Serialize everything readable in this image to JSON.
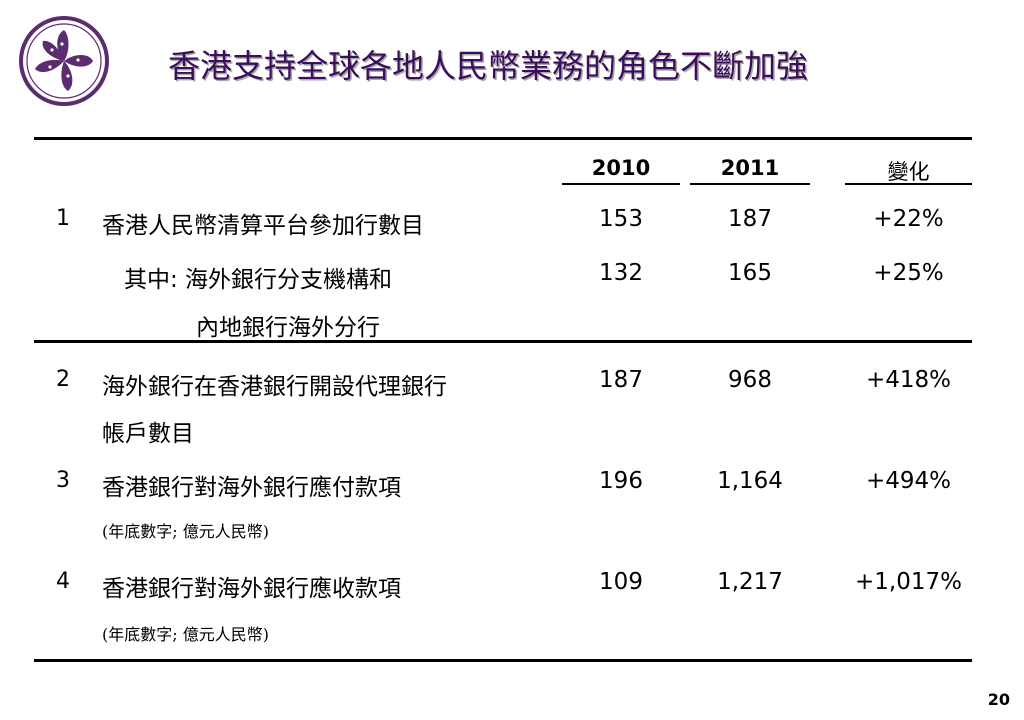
{
  "title": "香港支持全球各地人民幣業務的角色不斷加強",
  "logo": {
    "icon": "bauhinia-flower-icon",
    "ring_color": "#5b2c6f",
    "flower_color": "#5b2c6f"
  },
  "columns": [
    "2010",
    "2011",
    "變化"
  ],
  "rows": [
    {
      "index": "1",
      "label": "香港人民幣清算平台參加行數目",
      "v2010": "153",
      "v2011": "187",
      "change": "+22%"
    },
    {
      "label_line1": "其中: 海外銀行分支機構和",
      "label_line2": "內地銀行海外分行",
      "v2010": "132",
      "v2011": "165",
      "change": "+25%"
    },
    {
      "index": "2",
      "label_line1": "海外銀行在香港銀行開設代理銀行",
      "label_line2": "帳戶數目",
      "v2010": "187",
      "v2011": "968",
      "change": "+418%"
    },
    {
      "index": "3",
      "label": "香港銀行對海外銀行應付款項",
      "note": "(年底數字; 億元人民幣)",
      "v2010": "196",
      "v2011": "1,164",
      "change": "+494%"
    },
    {
      "index": "4",
      "label": "香港銀行對海外銀行應收款項",
      "note": "(年底數字; 億元人民幣)",
      "v2010": "109",
      "v2011": "1,217",
      "change": "+1,017%"
    }
  ],
  "page_number": "20"
}
